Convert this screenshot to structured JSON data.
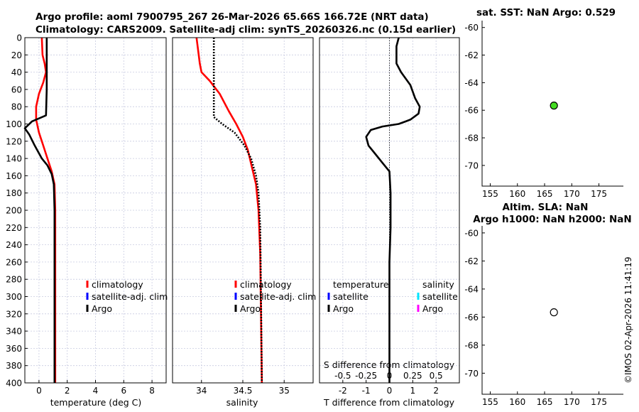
{
  "header": {
    "title_line1": "Argo profile: aoml 7900795_267 26-Mar-2026 65.66S 166.72E (NRT data)",
    "title_line2": "Climatology: CARS2009. Satellite-adj clim: synTS_20260326.nc (0.15d earlier)"
  },
  "copyright": "©IMOS 02-Apr-2026 11:41:19",
  "colors": {
    "climatology": "#ff0000",
    "satellite_adj": "#0000ff",
    "argo": "#000000",
    "satellite_s": "#00e5ff",
    "satellite_s2": "#ff00ff",
    "grid": "#c8cbe0",
    "sst_marker": "#44dd22"
  },
  "chart_data": [
    {
      "id": "temperature",
      "type": "line",
      "xlabel": "temperature (deg C)",
      "xlim": [
        -1,
        9
      ],
      "xticks": [
        "0",
        "2",
        "4",
        "6",
        "8"
      ],
      "xtick_values": [
        0,
        2,
        4,
        6,
        8
      ],
      "ylim": [
        0,
        400
      ],
      "yticks": [
        "0",
        "20",
        "40",
        "60",
        "80",
        "100",
        "120",
        "140",
        "160",
        "180",
        "200",
        "220",
        "240",
        "260",
        "280",
        "300",
        "320",
        "340",
        "360",
        "380",
        "400"
      ],
      "ytick_values": [
        0,
        20,
        40,
        60,
        80,
        100,
        120,
        140,
        160,
        180,
        200,
        220,
        240,
        260,
        280,
        300,
        320,
        340,
        360,
        380,
        400
      ],
      "legend": [
        "climatology",
        "satellite-adj. clim",
        "Argo"
      ],
      "series": [
        {
          "name": "climatology",
          "color": "#ff0000",
          "style": "solid",
          "x": [
            0.2,
            0.25,
            0.4,
            0.5,
            0.3,
            0.0,
            -0.2,
            -0.2,
            0.0,
            0.3,
            0.6,
            0.9,
            1.1,
            1.15,
            1.15,
            1.15,
            1.15
          ],
          "y": [
            0,
            20,
            30,
            40,
            52,
            65,
            80,
            95,
            110,
            125,
            140,
            155,
            170,
            200,
            250,
            320,
            400
          ]
        },
        {
          "name": "Argo",
          "color": "#000000",
          "style": "solid",
          "x": [
            0.55,
            0.55,
            0.55,
            0.55,
            0.5,
            -0.5,
            -1.0,
            -0.7,
            -0.3,
            0.2,
            0.6,
            0.9,
            1.05,
            1.1,
            1.1,
            1.1,
            1.1
          ],
          "y": [
            0,
            20,
            40,
            60,
            90,
            97,
            105,
            112,
            125,
            140,
            148,
            158,
            170,
            200,
            250,
            320,
            400
          ]
        }
      ]
    },
    {
      "id": "salinity",
      "type": "line",
      "xlabel": "salinity",
      "xlim": [
        33.65,
        35.35
      ],
      "xticks": [
        "34",
        "34.5",
        "35"
      ],
      "xtick_values": [
        34,
        34.5,
        35
      ],
      "ylim": [
        0,
        400
      ],
      "legend": [
        "climatology",
        "satellite-adj. clim",
        "Argo"
      ],
      "series": [
        {
          "name": "climatology",
          "color": "#ff0000",
          "style": "solid",
          "x": [
            33.94,
            33.96,
            33.98,
            34.0,
            34.1,
            34.22,
            34.33,
            34.42,
            34.5,
            34.56,
            34.61,
            34.66,
            34.69,
            34.71,
            34.72,
            34.73
          ],
          "y": [
            0,
            15,
            30,
            40,
            50,
            65,
            85,
            100,
            115,
            130,
            150,
            170,
            200,
            250,
            320,
            400
          ]
        },
        {
          "name": "Argo",
          "color": "#000000",
          "style": "dotted",
          "x": [
            34.15,
            34.15,
            34.15,
            34.15,
            34.15,
            34.25,
            34.4,
            34.52,
            34.6,
            34.66,
            34.69,
            34.71,
            34.72,
            34.73
          ],
          "y": [
            0,
            20,
            40,
            60,
            92,
            100,
            110,
            125,
            140,
            160,
            180,
            220,
            300,
            400
          ]
        }
      ]
    },
    {
      "id": "difference",
      "type": "line",
      "xlabel": "T difference from climatology",
      "xlabel_top": "S difference from climatology",
      "xlim": [
        -3,
        3
      ],
      "xticks": [
        "-2",
        "-1",
        "0",
        "1",
        "2"
      ],
      "xtick_values": [
        -2,
        -1,
        0,
        1,
        2
      ],
      "s_ticks": [
        "-0.5",
        "-0.25",
        "0",
        "0.25",
        "0.5"
      ],
      "ylim": [
        0,
        400
      ],
      "legend_headers": [
        "temperature",
        "salinity"
      ],
      "legend_t": [
        "satellite",
        "Argo"
      ],
      "legend_s": [
        "satellite",
        "Argo"
      ],
      "series": [
        {
          "name": "T difference",
          "color": "#000000",
          "style": "solid",
          "x": [
            0.4,
            0.3,
            0.3,
            0.5,
            0.9,
            1.1,
            1.3,
            1.25,
            0.9,
            0.7,
            0.4,
            -0.3,
            -0.8,
            -1.0,
            -0.9,
            -0.6,
            -0.3,
            0.0,
            0.05,
            0.05,
            0.0,
            0.0,
            0.0
          ],
          "y": [
            0,
            10,
            30,
            40,
            55,
            70,
            80,
            88,
            95,
            97,
            100,
            103,
            107,
            115,
            125,
            135,
            145,
            155,
            180,
            220,
            260,
            330,
            400
          ]
        }
      ]
    },
    {
      "id": "sst_map",
      "type": "scatter",
      "title": "sat. SST: NaN Argo: 0.529",
      "xlim": [
        153.5,
        179.5
      ],
      "ylim": [
        -71.5,
        -59.5
      ],
      "xticks": [
        "155",
        "160",
        "165",
        "170",
        "175"
      ],
      "xtick_values": [
        155,
        160,
        165,
        170,
        175
      ],
      "yticks": [
        "-60",
        "-62",
        "-64",
        "-66",
        "-68",
        "-70"
      ],
      "ytick_values": [
        -60,
        -62,
        -64,
        -66,
        -68,
        -70
      ],
      "points": [
        {
          "x": 166.72,
          "y": -65.66
        }
      ]
    },
    {
      "id": "sla_map",
      "type": "scatter",
      "title_line1": "Altim. SLA: NaN",
      "title_line2": "Argo h1000: NaN h2000: NaN",
      "xlim": [
        153.5,
        179.5
      ],
      "ylim": [
        -71.5,
        -59.5
      ],
      "xticks": [
        "155",
        "160",
        "165",
        "170",
        "175"
      ],
      "xtick_values": [
        155,
        160,
        165,
        170,
        175
      ],
      "yticks": [
        "-60",
        "-62",
        "-64",
        "-66",
        "-68",
        "-70"
      ],
      "ytick_values": [
        -60,
        -62,
        -64,
        -66,
        -68,
        -70
      ],
      "points": [
        {
          "x": 166.72,
          "y": -65.66
        }
      ]
    }
  ]
}
